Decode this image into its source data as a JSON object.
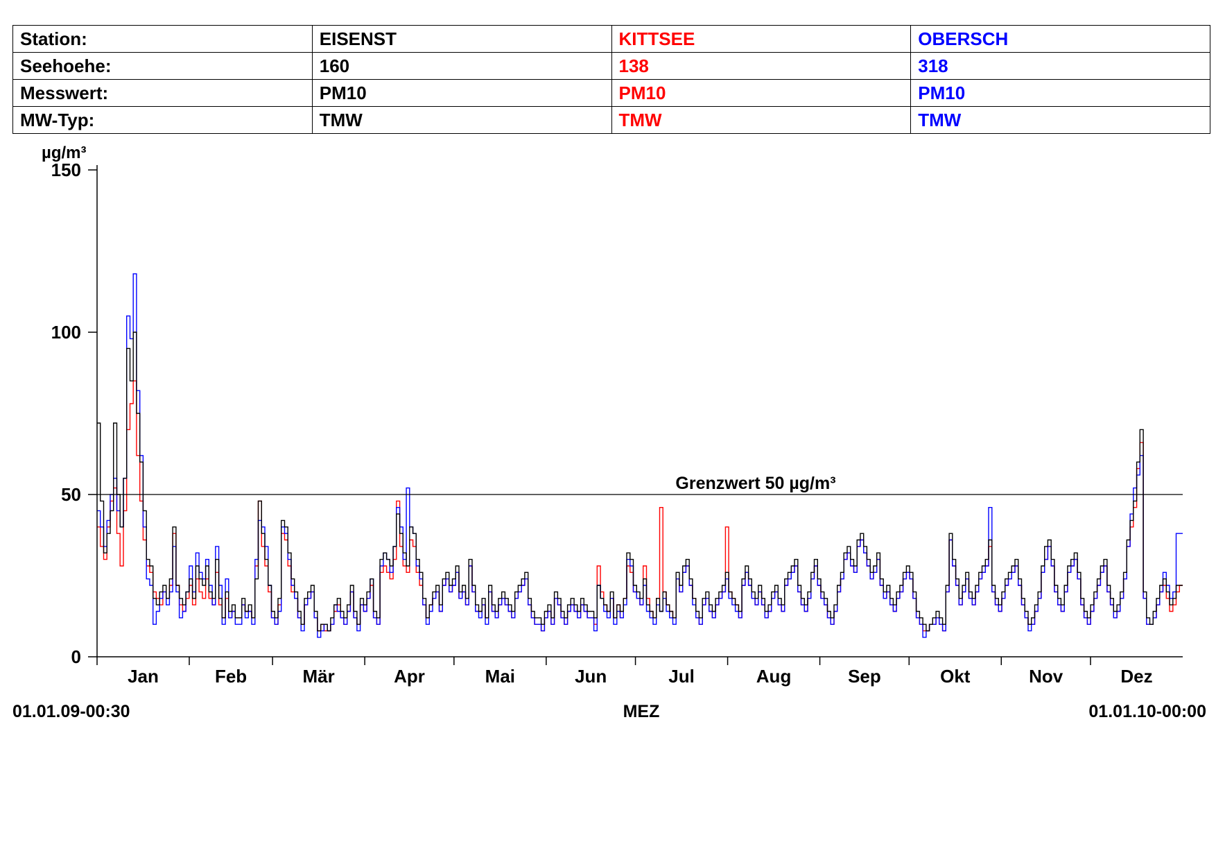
{
  "info_table": {
    "rows": [
      {
        "label": "Station:",
        "values": [
          "EISENST",
          "KITTSEE",
          "OBERSCH"
        ]
      },
      {
        "label": "Seehoehe:",
        "values": [
          "160",
          "138",
          "318"
        ]
      },
      {
        "label": "Messwert:",
        "values": [
          "PM10",
          "PM10",
          "PM10"
        ]
      },
      {
        "label": "MW-Typ:",
        "values": [
          "TMW",
          "TMW",
          "TMW"
        ]
      }
    ],
    "column_colors": [
      "#000000",
      "#ff0000",
      "#0000ff"
    ]
  },
  "chart_data": {
    "type": "line",
    "step": true,
    "unit_label": "µg/m³",
    "ylim": [
      0,
      150
    ],
    "y_ticks": [
      "0",
      "50",
      "100",
      "150"
    ],
    "months": [
      "Jan",
      "Feb",
      "Mär",
      "Apr",
      "Mai",
      "Jun",
      "Jul",
      "Aug",
      "Sep",
      "Okt",
      "Nov",
      "Dez"
    ],
    "x_start_label": "01.01.09-00:30",
    "x_center_label": "MEZ",
    "x_end_label": "01.01.10-00:00",
    "threshold": {
      "value": 50,
      "label": "Grenzwert 50 µg/m³"
    },
    "grid": false,
    "series": [
      {
        "name": "EISENST",
        "color": "#000000",
        "values": [
          72,
          48,
          32,
          38,
          45,
          72,
          50,
          40,
          55,
          95,
          85,
          100,
          75,
          60,
          45,
          30,
          28,
          18,
          16,
          20,
          22,
          18,
          24,
          40,
          22,
          18,
          16,
          20,
          24,
          18,
          28,
          24,
          22,
          28,
          20,
          18,
          30,
          18,
          12,
          20,
          14,
          16,
          12,
          12,
          18,
          14,
          16,
          12,
          24,
          48,
          38,
          30,
          22,
          14,
          12,
          18,
          42,
          40,
          32,
          24,
          20,
          14,
          10,
          18,
          20,
          22,
          14,
          8,
          10,
          10,
          8,
          12,
          16,
          18,
          14,
          12,
          16,
          22,
          14,
          10,
          18,
          16,
          20,
          24,
          14,
          12,
          30,
          32,
          30,
          28,
          34,
          44,
          38,
          32,
          28,
          40,
          38,
          30,
          26,
          18,
          12,
          16,
          20,
          22,
          16,
          24,
          26,
          22,
          24,
          28,
          20,
          22,
          18,
          30,
          22,
          16,
          14,
          18,
          12,
          22,
          16,
          14,
          18,
          20,
          18,
          16,
          14,
          20,
          22,
          24,
          26,
          18,
          14,
          12,
          12,
          10,
          14,
          16,
          12,
          20,
          18,
          14,
          12,
          16,
          18,
          16,
          14,
          18,
          16,
          14,
          14,
          12,
          22,
          18,
          16,
          14,
          20,
          12,
          16,
          14,
          18,
          32,
          30,
          22,
          20,
          18,
          24,
          16,
          14,
          12,
          18,
          14,
          20,
          16,
          14,
          12,
          26,
          22,
          28,
          30,
          24,
          18,
          14,
          12,
          18,
          20,
          16,
          14,
          18,
          20,
          22,
          26,
          20,
          18,
          16,
          14,
          24,
          28,
          24,
          20,
          18,
          22,
          18,
          14,
          16,
          20,
          22,
          18,
          16,
          24,
          26,
          28,
          30,
          22,
          18,
          16,
          20,
          26,
          30,
          24,
          20,
          18,
          14,
          12,
          16,
          22,
          26,
          32,
          34,
          30,
          28,
          36,
          38,
          34,
          30,
          26,
          28,
          32,
          24,
          20,
          22,
          18,
          16,
          20,
          22,
          26,
          28,
          26,
          20,
          14,
          12,
          10,
          8,
          10,
          12,
          14,
          12,
          10,
          22,
          38,
          30,
          24,
          18,
          22,
          26,
          20,
          18,
          22,
          26,
          28,
          30,
          36,
          22,
          18,
          16,
          20,
          24,
          26,
          28,
          30,
          24,
          18,
          14,
          10,
          12,
          16,
          20,
          28,
          34,
          36,
          30,
          22,
          18,
          16,
          22,
          28,
          30,
          32,
          26,
          18,
          14,
          12,
          16,
          20,
          24,
          28,
          30,
          22,
          18,
          14,
          16,
          20,
          26,
          36,
          42,
          48,
          60,
          70,
          20,
          12,
          10,
          14,
          18,
          22,
          24,
          20,
          16,
          18,
          22,
          22
        ]
      },
      {
        "name": "KITTSEE",
        "color": "#ff0000",
        "values": [
          40,
          34,
          30,
          40,
          48,
          52,
          38,
          28,
          45,
          70,
          78,
          85,
          62,
          48,
          36,
          28,
          26,
          20,
          18,
          16,
          20,
          18,
          22,
          38,
          22,
          16,
          14,
          18,
          22,
          16,
          24,
          20,
          18,
          24,
          18,
          16,
          26,
          16,
          12,
          18,
          12,
          14,
          12,
          12,
          16,
          14,
          14,
          12,
          28,
          48,
          34,
          28,
          20,
          12,
          10,
          16,
          38,
          36,
          28,
          20,
          18,
          12,
          10,
          16,
          18,
          20,
          12,
          8,
          10,
          8,
          8,
          10,
          14,
          16,
          12,
          10,
          14,
          20,
          12,
          10,
          16,
          14,
          18,
          22,
          12,
          10,
          26,
          28,
          26,
          24,
          30,
          48,
          34,
          28,
          26,
          36,
          34,
          26,
          22,
          16,
          12,
          16,
          18,
          20,
          14,
          22,
          24,
          20,
          22,
          26,
          18,
          20,
          16,
          28,
          20,
          14,
          14,
          16,
          12,
          20,
          14,
          12,
          16,
          18,
          16,
          14,
          12,
          18,
          20,
          22,
          24,
          16,
          12,
          10,
          10,
          8,
          12,
          14,
          10,
          18,
          16,
          12,
          10,
          14,
          16,
          14,
          12,
          16,
          14,
          12,
          12,
          10,
          28,
          20,
          16,
          14,
          18,
          12,
          16,
          12,
          18,
          28,
          26,
          20,
          18,
          16,
          28,
          18,
          14,
          12,
          18,
          46,
          20,
          16,
          14,
          12,
          24,
          20,
          26,
          28,
          22,
          18,
          12,
          10,
          16,
          18,
          14,
          12,
          16,
          18,
          20,
          40,
          20,
          18,
          16,
          12,
          22,
          26,
          22,
          18,
          16,
          20,
          16,
          12,
          14,
          18,
          20,
          16,
          14,
          22,
          24,
          26,
          28,
          20,
          16,
          14,
          18,
          24,
          28,
          22,
          18,
          16,
          12,
          10,
          14,
          20,
          24,
          30,
          32,
          28,
          26,
          34,
          36,
          32,
          28,
          24,
          26,
          30,
          22,
          18,
          20,
          16,
          14,
          18,
          20,
          24,
          26,
          24,
          18,
          12,
          10,
          8,
          8,
          10,
          10,
          12,
          10,
          8,
          20,
          36,
          28,
          22,
          16,
          20,
          24,
          18,
          16,
          20,
          24,
          26,
          28,
          34,
          20,
          16,
          14,
          18,
          22,
          24,
          26,
          28,
          22,
          16,
          12,
          10,
          10,
          14,
          18,
          26,
          30,
          34,
          28,
          20,
          16,
          14,
          20,
          26,
          28,
          30,
          24,
          16,
          12,
          10,
          14,
          18,
          22,
          26,
          28,
          20,
          16,
          12,
          14,
          18,
          24,
          34,
          40,
          46,
          58,
          66,
          18,
          10,
          10,
          12,
          16,
          20,
          22,
          18,
          14,
          16,
          20,
          22
        ]
      },
      {
        "name": "OBERSCH",
        "color": "#0000ff",
        "values": [
          45,
          40,
          34,
          42,
          50,
          55,
          45,
          40,
          55,
          105,
          98,
          118,
          82,
          62,
          40,
          24,
          22,
          10,
          14,
          18,
          20,
          16,
          20,
          34,
          20,
          12,
          14,
          20,
          28,
          20,
          32,
          26,
          24,
          30,
          22,
          16,
          34,
          22,
          10,
          24,
          12,
          14,
          10,
          10,
          16,
          12,
          14,
          10,
          30,
          42,
          40,
          34,
          22,
          12,
          10,
          14,
          40,
          38,
          30,
          22,
          18,
          12,
          8,
          16,
          18,
          20,
          12,
          6,
          8,
          10,
          8,
          10,
          16,
          14,
          12,
          10,
          14,
          20,
          12,
          8,
          16,
          14,
          18,
          24,
          12,
          10,
          28,
          32,
          30,
          26,
          34,
          46,
          40,
          30,
          52,
          40,
          38,
          28,
          24,
          16,
          10,
          14,
          18,
          20,
          14,
          22,
          24,
          20,
          22,
          26,
          18,
          20,
          16,
          28,
          20,
          14,
          12,
          16,
          10,
          20,
          14,
          12,
          16,
          18,
          16,
          14,
          12,
          18,
          20,
          22,
          24,
          16,
          12,
          10,
          10,
          8,
          12,
          14,
          10,
          18,
          16,
          12,
          10,
          14,
          16,
          14,
          12,
          16,
          14,
          12,
          12,
          8,
          22,
          18,
          14,
          12,
          18,
          10,
          14,
          12,
          16,
          30,
          28,
          20,
          18,
          16,
          22,
          14,
          12,
          10,
          16,
          14,
          18,
          14,
          12,
          10,
          24,
          20,
          26,
          28,
          22,
          16,
          12,
          10,
          16,
          18,
          14,
          12,
          16,
          18,
          20,
          24,
          18,
          16,
          14,
          12,
          22,
          26,
          22,
          18,
          16,
          20,
          16,
          12,
          14,
          18,
          20,
          16,
          14,
          22,
          24,
          26,
          28,
          20,
          16,
          14,
          18,
          24,
          28,
          22,
          18,
          16,
          12,
          10,
          14,
          20,
          24,
          30,
          32,
          28,
          26,
          34,
          36,
          32,
          28,
          24,
          26,
          30,
          22,
          18,
          20,
          16,
          14,
          18,
          20,
          24,
          26,
          24,
          18,
          12,
          10,
          6,
          8,
          10,
          10,
          12,
          10,
          8,
          20,
          36,
          28,
          22,
          16,
          20,
          24,
          18,
          16,
          20,
          24,
          26,
          28,
          46,
          20,
          16,
          14,
          18,
          22,
          24,
          26,
          28,
          22,
          16,
          12,
          8,
          10,
          14,
          18,
          26,
          30,
          34,
          28,
          20,
          16,
          14,
          20,
          26,
          28,
          30,
          24,
          16,
          12,
          10,
          14,
          18,
          22,
          26,
          28,
          20,
          16,
          12,
          14,
          18,
          24,
          34,
          44,
          52,
          56,
          62,
          18,
          10,
          10,
          12,
          16,
          20,
          26,
          22,
          18,
          20,
          38,
          38
        ]
      }
    ]
  }
}
